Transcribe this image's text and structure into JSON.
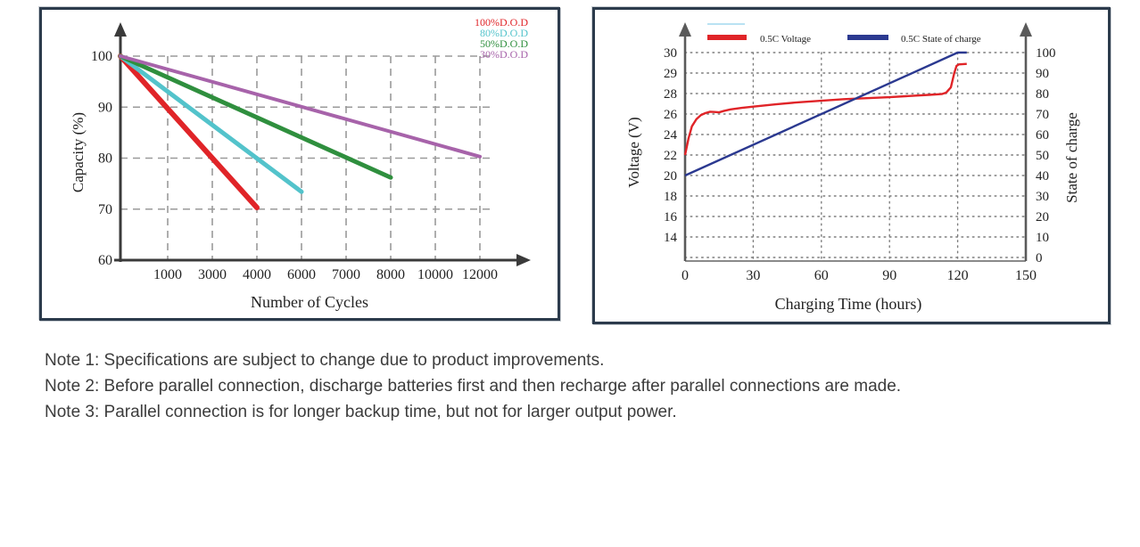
{
  "notes": [
    "Note 1: Specifications are subject to change due to product improvements.",
    "Note 2: Before parallel connection, discharge batteries first and then recharge after parallel connections are made.",
    "Note 3: Parallel connection is for longer backup time, but not for larger output power.",
    "Note 3: Parallel connection is for longer backup time, but not for larger output power."
  ],
  "colors": {
    "red": "#e02428",
    "cyan": "#53c3cb",
    "green": "#2f8f3e",
    "purple": "#a763aa",
    "dark_blue": "#2b3990",
    "light_blue": "#b9e2f3",
    "axis": "#3a3a3a",
    "grid": "#9a9a9a",
    "frame": "#8a8a8a",
    "text": "#222222",
    "panel_border": "#2c3b4c"
  },
  "chart_data": [
    {
      "type": "line",
      "title": "",
      "xlabel": "Number of Cycles",
      "ylabel": "Capacity (%)",
      "x_ticks": [
        1000,
        3000,
        4000,
        6000,
        7000,
        8000,
        10000,
        12000
      ],
      "y_ticks": [
        60,
        70,
        80,
        90,
        100
      ],
      "ylim": [
        60,
        100
      ],
      "grid": "dashed",
      "legend_position": "top-right",
      "series": [
        {
          "name": "100%D.O.D",
          "color": "#e02428",
          "width": 6,
          "points": [
            [
              0,
              100
            ],
            [
              4000,
              70.3
            ]
          ]
        },
        {
          "name": "80%D.O.D",
          "color": "#53c3cb",
          "width": 5,
          "points": [
            [
              0,
              100
            ],
            [
              6000,
              73.4
            ]
          ]
        },
        {
          "name": "50%D.O.D",
          "color": "#2f8f3e",
          "width": 5,
          "points": [
            [
              0,
              100
            ],
            [
              8000,
              76.2
            ]
          ]
        },
        {
          "name": "30%D.O.D",
          "color": "#a763aa",
          "width": 4,
          "points": [
            [
              0,
              100
            ],
            [
              12000,
              80.3
            ]
          ]
        }
      ]
    },
    {
      "type": "line",
      "title": "",
      "xlabel": "Charging Time (hours)",
      "ylabel_left": "Voltage (V)",
      "ylabel_right": "State of charge",
      "x_ticks": [
        0,
        30,
        60,
        90,
        120,
        150
      ],
      "xlim": [
        0,
        150
      ],
      "left_axis_ticks": [
        30,
        29,
        28,
        26,
        24,
        22,
        20,
        18,
        16,
        14
      ],
      "right_axis_ticks": [
        100,
        90,
        80,
        70,
        60,
        50,
        40,
        30,
        20,
        10,
        0
      ],
      "grid": "dotted",
      "legend": [
        {
          "label": "",
          "color": "#b9e2f3",
          "style": "thin-line"
        },
        {
          "label": "0.5C Voltage",
          "color": "#e02428",
          "style": "thick-bar"
        },
        {
          "label": "0.5C State of charge",
          "color": "#2b3990",
          "style": "thick-bar"
        }
      ],
      "series": [
        {
          "name": "0.5C Voltage",
          "axis": "voltage",
          "color": "#e02428",
          "width": 2.4,
          "points": [
            [
              0,
              22
            ],
            [
              1.5,
              23.6
            ],
            [
              3,
              24.8
            ],
            [
              5,
              25.5
            ],
            [
              7,
              25.9
            ],
            [
              9,
              26.1
            ],
            [
              11,
              26.22
            ],
            [
              13,
              26.2
            ],
            [
              15,
              26.17
            ],
            [
              17,
              26.3
            ],
            [
              20,
              26.45
            ],
            [
              25,
              26.6
            ],
            [
              30,
              26.72
            ],
            [
              40,
              26.95
            ],
            [
              50,
              27.15
            ],
            [
              60,
              27.3
            ],
            [
              70,
              27.45
            ],
            [
              80,
              27.55
            ],
            [
              90,
              27.65
            ],
            [
              100,
              27.78
            ],
            [
              108,
              27.88
            ],
            [
              113,
              27.95
            ],
            [
              115,
              28.05
            ],
            [
              117,
              28.3
            ],
            [
              118.5,
              29.0
            ],
            [
              119.5,
              29.35
            ],
            [
              120.5,
              29.42
            ],
            [
              124,
              29.45
            ]
          ]
        },
        {
          "name": "0.5C State of charge",
          "axis": "soc",
          "color": "#2b3990",
          "width": 2.4,
          "points": [
            [
              0,
              40
            ],
            [
              120,
              100
            ],
            [
              124,
              100
            ]
          ]
        }
      ]
    }
  ]
}
